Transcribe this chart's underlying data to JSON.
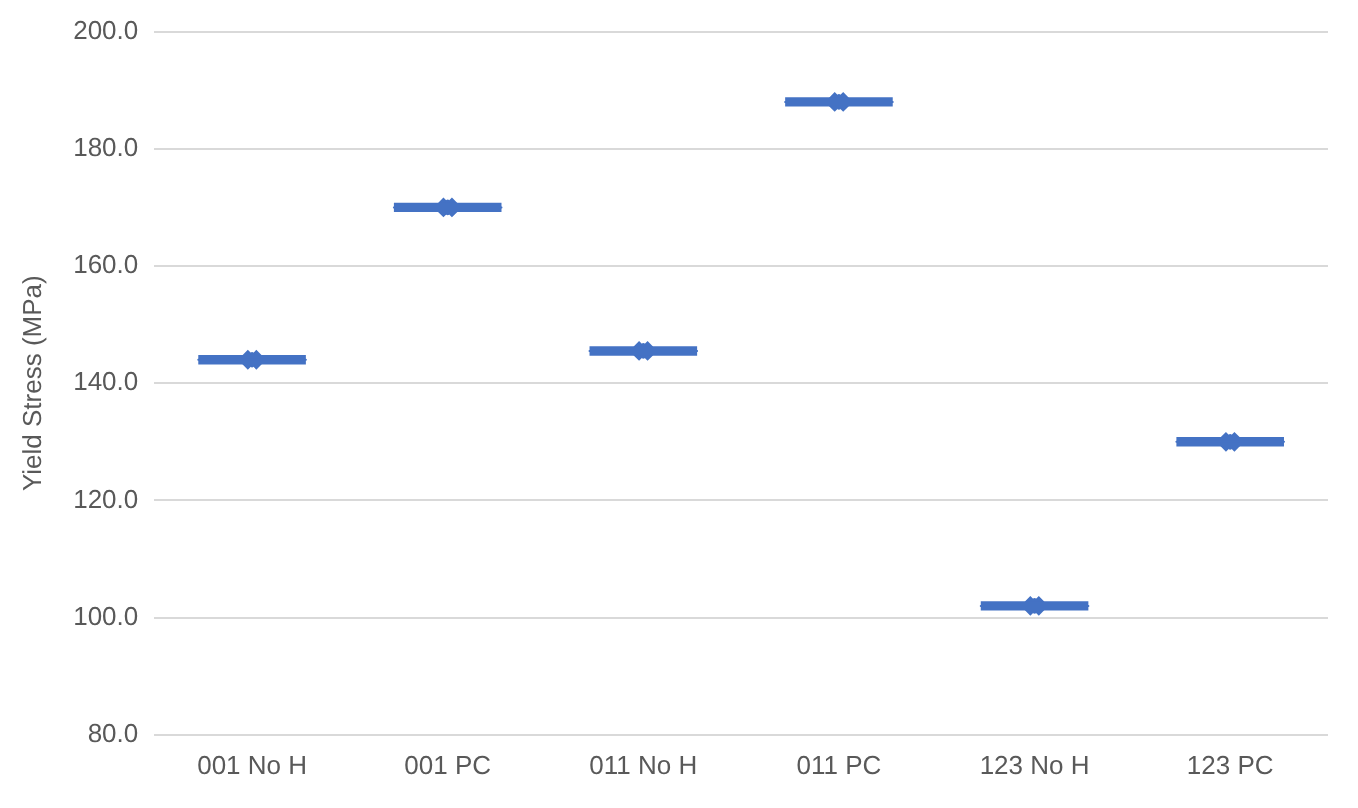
{
  "chart_data": {
    "type": "box",
    "ylabel": "Yield Stress (MPa)",
    "categories": [
      "001 No H",
      "001 PC",
      "011 No H",
      "011 PC",
      "123 No H",
      "123 PC"
    ],
    "color": "#4472c4",
    "boxes": [
      {
        "low": 143,
        "q1": 143.2,
        "median": 144,
        "q3": 144.8,
        "high": 145,
        "mean": 144
      },
      {
        "low": 169,
        "q1": 169.2,
        "median": 170,
        "q3": 170.8,
        "high": 171,
        "mean": 170
      },
      {
        "low": 144.5,
        "q1": 144.7,
        "median": 145.5,
        "q3": 146.3,
        "high": 146.5,
        "mean": 145.5
      },
      {
        "low": 187,
        "q1": 187.2,
        "median": 188,
        "q3": 188.8,
        "high": 189,
        "mean": 188
      },
      {
        "low": 101,
        "q1": 101.2,
        "median": 102,
        "q3": 102.8,
        "high": 103,
        "mean": 102
      },
      {
        "low": 129,
        "q1": 129.2,
        "median": 130,
        "q3": 130.8,
        "high": 131,
        "mean": 130
      }
    ],
    "ylim": [
      80,
      200
    ],
    "yticks": [
      {
        "value": 80,
        "label": "80.0"
      },
      {
        "value": 100,
        "label": "100.0"
      },
      {
        "value": 120,
        "label": "120.0"
      },
      {
        "value": 140,
        "label": "140.0"
      },
      {
        "value": 160,
        "label": "160.0"
      },
      {
        "value": 180,
        "label": "180.0"
      },
      {
        "value": 200,
        "label": "200.0"
      }
    ],
    "grid": "y",
    "legend": false,
    "marker": "cross"
  }
}
